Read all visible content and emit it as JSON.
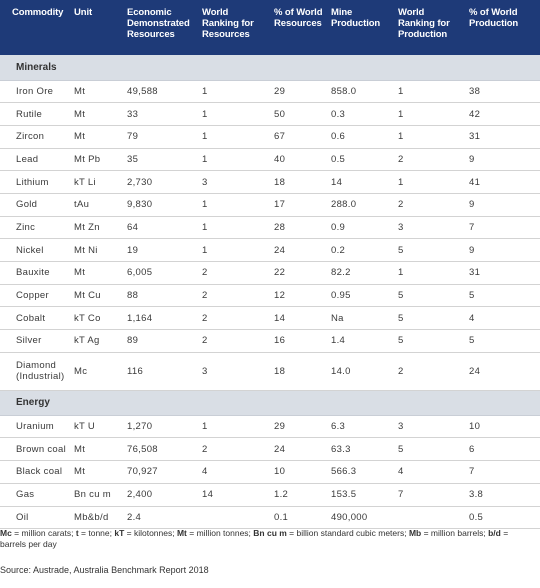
{
  "headers": [
    "Commodity",
    "Unit",
    "Economic Demonstrated Resources",
    "World Ranking for Resources",
    "% of World Resources",
    "Mine Production",
    "World Ranking for Production",
    "% of World Production"
  ],
  "sections": [
    {
      "title": "Minerals",
      "rows": [
        [
          "Iron Ore",
          "Mt",
          "49,588",
          "1",
          "29",
          "858.0",
          "1",
          "38"
        ],
        [
          "Rutile",
          "Mt",
          "33",
          "1",
          "50",
          "0.3",
          "1",
          "42"
        ],
        [
          "Zircon",
          "Mt",
          "79",
          "1",
          "67",
          "0.6",
          "1",
          "31"
        ],
        [
          "Lead",
          "Mt Pb",
          "35",
          "1",
          "40",
          "0.5",
          "2",
          "9"
        ],
        [
          "Lithium",
          "kT Li",
          "2,730",
          "3",
          "18",
          "14",
          "1",
          "41"
        ],
        [
          "Gold",
          "tAu",
          "9,830",
          "1",
          "17",
          "288.0",
          "2",
          "9"
        ],
        [
          "Zinc",
          "Mt Zn",
          "64",
          "1",
          "28",
          "0.9",
          "3",
          "7"
        ],
        [
          "Nickel",
          "Mt Ni",
          "19",
          "1",
          "24",
          "0.2",
          "5",
          "9"
        ],
        [
          "Bauxite",
          "Mt",
          "6,005",
          "2",
          "22",
          "82.2",
          "1",
          "31"
        ],
        [
          "Copper",
          "Mt Cu",
          "88",
          "2",
          "12",
          "0.95",
          "5",
          "5"
        ],
        [
          "Cobalt",
          "kT Co",
          "1,164",
          "2",
          "14",
          "Na",
          "5",
          "4"
        ],
        [
          "Silver",
          "kT Ag",
          "89",
          "2",
          "16",
          "1.4",
          "5",
          "5"
        ],
        [
          "Diamond (Industrial)",
          "Mc",
          "116",
          "3",
          "18",
          "14.0",
          "2",
          "24"
        ]
      ]
    },
    {
      "title": "Energy",
      "rows": [
        [
          "Uranium",
          "kT U",
          "1,270",
          "1",
          "29",
          "6.3",
          "3",
          "10"
        ],
        [
          "Brown coal",
          "Mt",
          "76,508",
          "2",
          "24",
          "63.3",
          "5",
          "6"
        ],
        [
          "Black coal",
          "Mt",
          "70,927",
          "4",
          "10",
          "566.3",
          "4",
          "7"
        ],
        [
          "Gas",
          "Bn cu m",
          "2,400",
          "14",
          "1.2",
          "153.5",
          "7",
          "3.8"
        ],
        [
          "Oil",
          "Mb&b/d",
          "2.4",
          "",
          "0.1",
          "490,000",
          "",
          "0.5"
        ]
      ]
    }
  ],
  "footnote": [
    {
      "term": "Mc",
      "def": " = million carats; "
    },
    {
      "term": "t",
      "def": " = tonne; "
    },
    {
      "term": "kT",
      "def": " = kilotonnes; "
    },
    {
      "term": "Mt",
      "def": " = million tonnes; "
    },
    {
      "term": "Bn cu m",
      "def": " = billion standard cubic meters; "
    },
    {
      "term": "Mb",
      "def": " = million barrels; "
    },
    {
      "term": "b/d",
      "def": " = barrels per day"
    }
  ],
  "source": "Source: Austrade, Australia Benchmark Report 2018",
  "colors": {
    "header_bg": "#1e3a78",
    "section_bg": "#d9dee5"
  }
}
